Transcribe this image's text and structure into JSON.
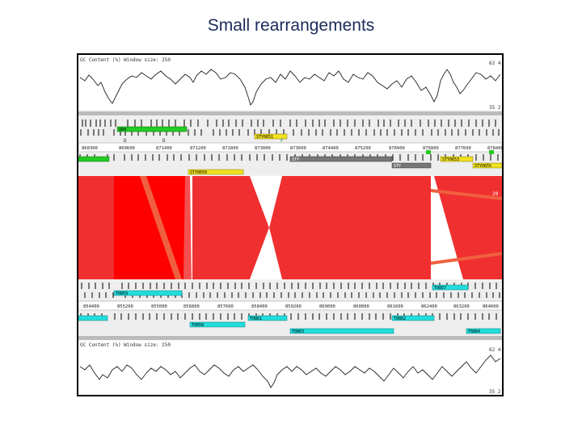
{
  "slide": {
    "title": "Small rearrangements"
  },
  "top_panel": {
    "graph_title": "GC Content (%)  Window size: 250",
    "max_label": "62 4",
    "min_label": "35 2",
    "coords": [
      "868300",
      "869600",
      "871400",
      "871200",
      "872800",
      "873000",
      "873600",
      "874400",
      "875200",
      "876000",
      "876800",
      "877600",
      "878400"
    ],
    "feature_labels": {
      "green_a": "O04",
      "yellow_a": "STY0651",
      "green_b": "",
      "yellow_b": "STY0650",
      "gray_a": "STY",
      "gray_b": "STY",
      "yellow_c": "STY0653",
      "yellow_d": "STY0655"
    },
    "side_label": "20"
  },
  "bottom_panel": {
    "graph_title": "GC Content (%)  Window size: 250",
    "max_label": "62 4",
    "min_label": "35 2",
    "coords": [
      "854400",
      "855200",
      "855000",
      "856800",
      "857600",
      "858400",
      "859200",
      "860000",
      "860800",
      "861600",
      "862400",
      "863200",
      "864000"
    ],
    "feature_labels": {
      "cyan_a": "T0859",
      "cyan_b": "T0857",
      "cyan_c": "T0860",
      "cyan_d": "T0858",
      "cyan_e": "T0861",
      "cyan_f": "T0863",
      "cyan_g": "T0862",
      "cyan_h": "T0864"
    }
  },
  "colors": {
    "match_forward": "#f03030",
    "match_strong": "#ff0000",
    "match_light": "#f55050",
    "inversion_band": "#f06040",
    "feature_green": "#22cc22",
    "feature_yellow": "#f0e020",
    "feature_gray": "#777777",
    "feature_cyan": "#22dddd"
  }
}
